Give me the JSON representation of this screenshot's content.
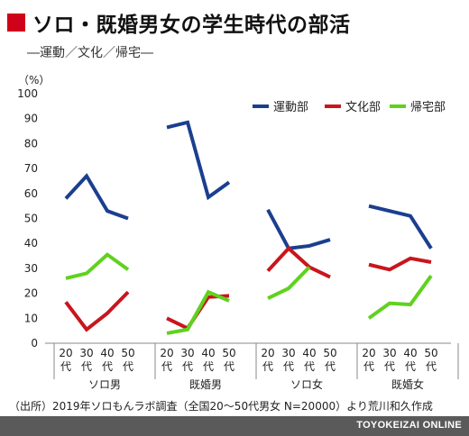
{
  "header": {
    "title": "ソロ・既婚男女の学生時代の部活",
    "subtitle": "―運動／文化／帰宅―",
    "accent_color": "#d0021b"
  },
  "chart_data": {
    "type": "line",
    "unit_label": "（%）",
    "ylim": [
      0,
      100
    ],
    "yticks": [
      0,
      10,
      20,
      30,
      40,
      50,
      60,
      70,
      80,
      90,
      100
    ],
    "grid": false,
    "legend_position": "top-right",
    "x_tick_labels": [
      "20\n代",
      "30\n代",
      "40\n代",
      "50\n代"
    ],
    "groups": [
      "ソロ男",
      "既婚男",
      "ソロ女",
      "既婚女"
    ],
    "series": [
      {
        "name": "運動部",
        "color": "#1b3f8f",
        "values": [
          [
            58,
            67,
            53,
            50
          ],
          [
            86.5,
            88.5,
            58.5,
            64.5
          ],
          [
            53.5,
            38,
            39,
            41.5
          ],
          [
            55,
            53,
            51,
            38
          ]
        ]
      },
      {
        "name": "文化部",
        "color": "#c8161d",
        "values": [
          [
            16.5,
            5.5,
            12,
            20.5
          ],
          [
            10,
            6,
            18.5,
            19
          ],
          [
            29,
            38,
            30.5,
            26.5
          ],
          [
            31.5,
            29.5,
            34,
            32.5
          ]
        ]
      },
      {
        "name": "帰宅部",
        "color": "#5fd21e",
        "values": [
          [
            26,
            28,
            35.5,
            29.5
          ],
          [
            4,
            5.5,
            20.5,
            17
          ],
          [
            18,
            22,
            30.5,
            null
          ],
          [
            10,
            16,
            15.5,
            27
          ]
        ]
      }
    ]
  },
  "source": "（出所）2019年ソロもんラボ調査（全国20〜50代男女 N=20000）より荒川和久作成",
  "credit": "TOYOKEIZAI ONLINE"
}
